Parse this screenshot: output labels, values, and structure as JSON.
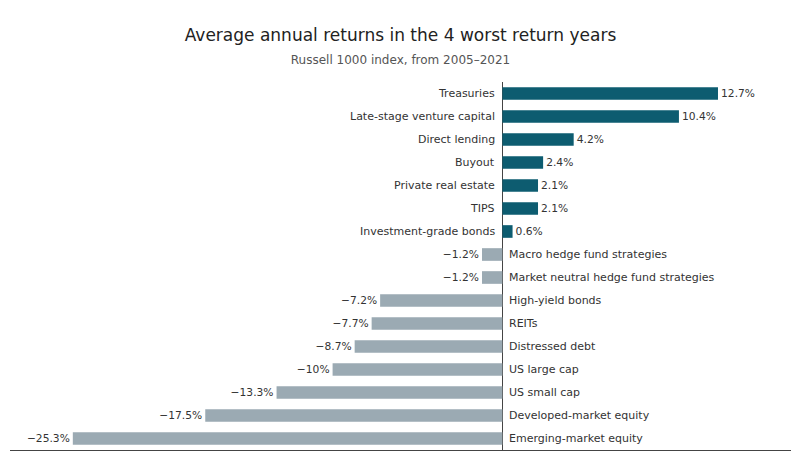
{
  "chart_data": {
    "type": "bar",
    "orientation": "horizontal",
    "title": "Average annual returns in the 4 worst return years",
    "subtitle": "Russell 1000 index, from 2005–2021",
    "categories": [
      "Treasuries",
      "Late-stage venture capital",
      "Direct lending",
      "Buyout",
      "Private real estate",
      "TIPS",
      "Investment-grade bonds",
      "Macro hedge fund strategies",
      "Market neutral hedge fund strategies",
      "High-yield bonds",
      "REITs",
      "Distressed debt",
      "US large cap",
      "US small cap",
      "Developed-market equity",
      "Emerging-market equity"
    ],
    "values": [
      12.7,
      10.4,
      4.2,
      2.4,
      2.1,
      2.1,
      0.6,
      -1.2,
      -1.2,
      -7.2,
      -7.7,
      -8.7,
      -10.0,
      -13.3,
      -17.5,
      -25.3
    ],
    "value_labels": [
      "12.7%",
      "10.4%",
      "4.2%",
      "2.4%",
      "2.1%",
      "2.1%",
      "0.6%",
      "−1.2%",
      "−1.2%",
      "−7.2%",
      "−7.7%",
      "−8.7%",
      "−10%",
      "−13.3%",
      "−17.5%",
      "−25.3%"
    ],
    "colors": [
      "#0d5c70",
      "#0d5c70",
      "#0d5c70",
      "#0d5c70",
      "#0d5c70",
      "#0d5c70",
      "#0d5c70",
      "#9baab3",
      "#9baab3",
      "#9baab3",
      "#9baab3",
      "#9baab3",
      "#9baab3",
      "#9baab3",
      "#9baab3",
      "#9baab3"
    ],
    "xlim": [
      -29,
      17
    ],
    "data_labels": true,
    "tick_labels": false,
    "grid": false
  }
}
